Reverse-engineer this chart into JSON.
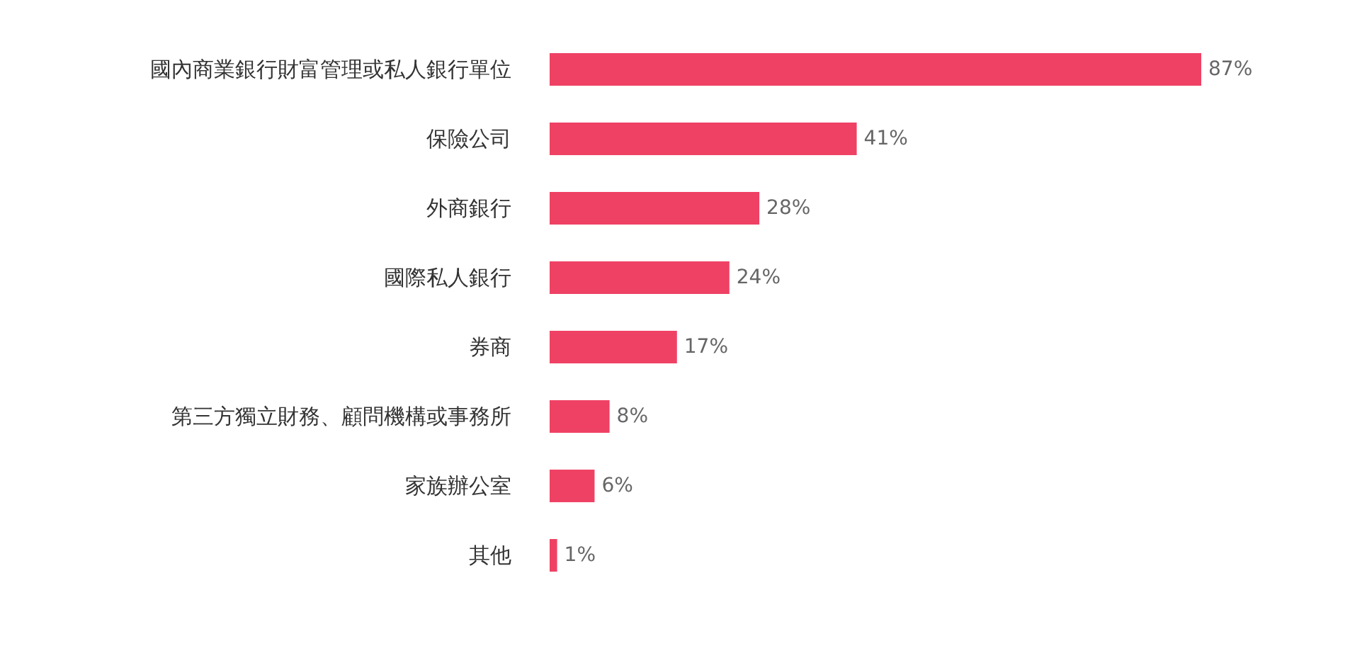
{
  "chart_data": {
    "type": "bar",
    "orientation": "horizontal",
    "categories": [
      "國內商業銀行財富管理或私人銀行單位",
      "保險公司",
      "外商銀行",
      "國際私人銀行",
      "券商",
      "第三方獨立財務、顧問機構或事務所",
      "家族辦公室",
      "其他"
    ],
    "values": [
      87,
      41,
      28,
      24,
      17,
      8,
      6,
      1
    ],
    "value_labels": [
      "87%",
      "41%",
      "28%",
      "24%",
      "17%",
      "8%",
      "6%",
      "1%"
    ],
    "color": "#ef4164"
  }
}
